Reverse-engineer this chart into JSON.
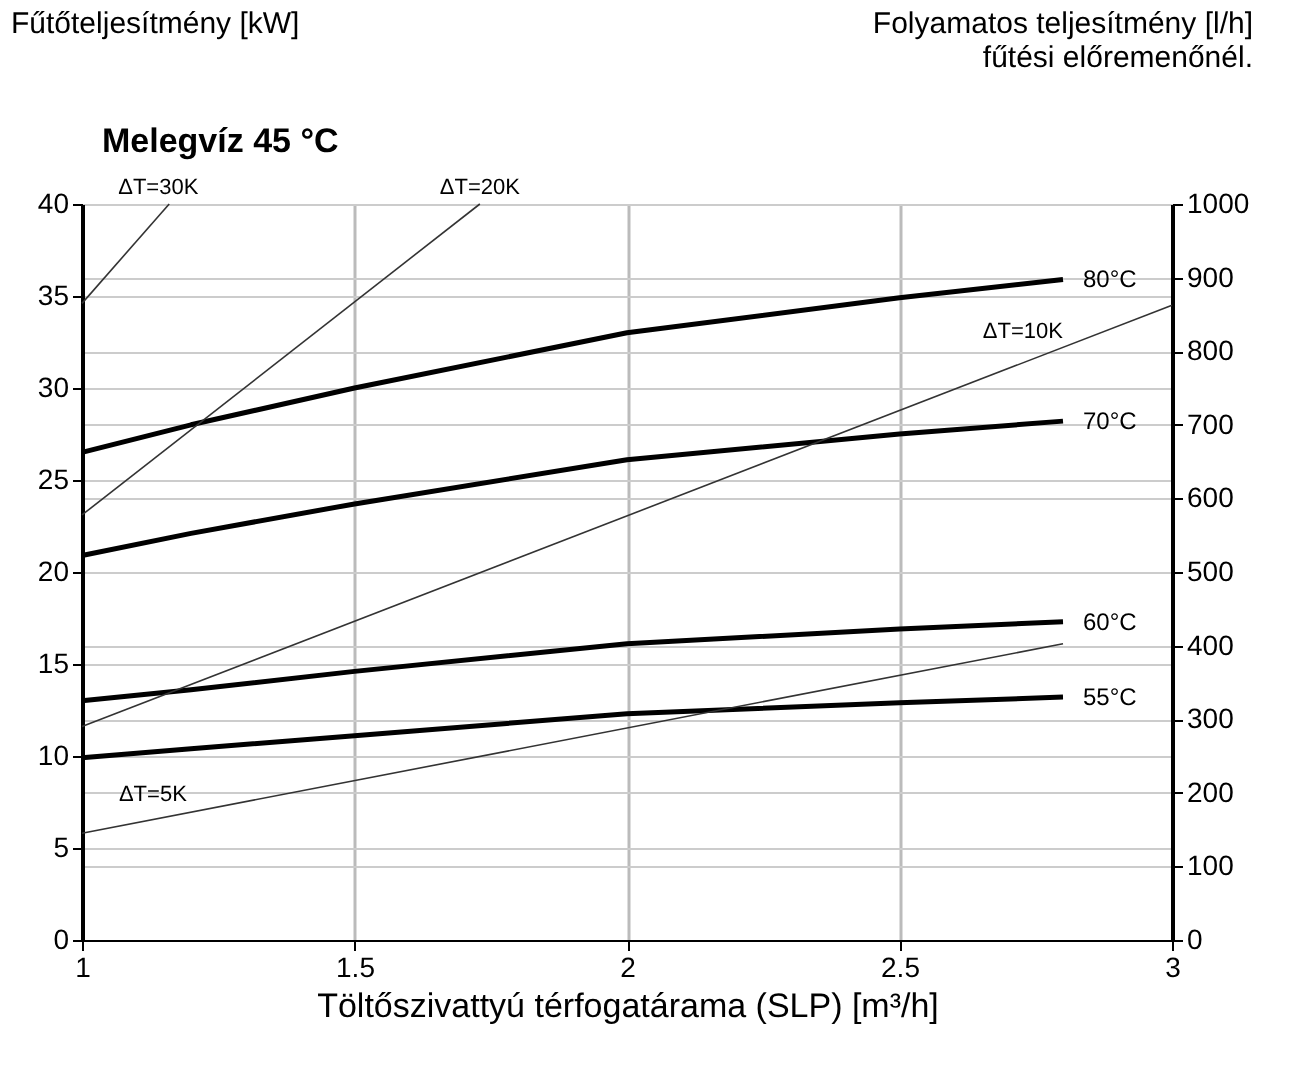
{
  "chart_data": {
    "type": "line",
    "title": "Melegvíz 45 °C",
    "xlabel": "Töltőszivattyú térfogatárama (SLP) [m³/h]",
    "ylabel": "Fűtőteljesítmény [kW]",
    "y2label": "Folyamatos teljesítmény [l/h]\nfűtési előremenőnél.",
    "x": [
      1,
      1.2,
      1.5,
      2,
      2.5,
      2.8
    ],
    "series": [
      {
        "name": "80°C",
        "color": "#000000",
        "values": [
          26.5,
          28.0,
          30.0,
          33.0,
          34.9,
          35.9
        ]
      },
      {
        "name": "70°C",
        "color": "#000000",
        "values": [
          20.9,
          22.1,
          23.7,
          26.1,
          27.5,
          28.2
        ]
      },
      {
        "name": "60°C",
        "color": "#000000",
        "values": [
          13.0,
          13.6,
          14.6,
          16.1,
          16.9,
          17.3
        ]
      },
      {
        "name": "55°C",
        "color": "#000000",
        "values": [
          9.9,
          10.4,
          11.1,
          12.3,
          12.9,
          13.2
        ]
      },
      {
        "color": "#333333",
        "x": [
          1,
          2.8
        ],
        "values": [
          5.8,
          16.1
        ]
      },
      {
        "color": "#333333",
        "x": [
          1,
          3
        ],
        "values": [
          11.6,
          34.5
        ]
      },
      {
        "color": "#333333",
        "x": [
          1,
          1.73
        ],
        "values": [
          23.1,
          40
        ]
      },
      {
        "color": "#333333",
        "x": [
          1,
          1.16
        ],
        "values": [
          34.6,
          40
        ]
      }
    ],
    "annotations": [
      {
        "text": "ΔT=5K",
        "x": 1.13,
        "y": 7.0
      },
      {
        "text": "ΔT=10K",
        "x": 2.8,
        "y": 32.2
      },
      {
        "text": "ΔT=20K",
        "x": 1.73,
        "y": 40
      },
      {
        "text": "ΔT=30K",
        "x": 1.14,
        "y": 40
      }
    ],
    "xlim": [
      1,
      3
    ],
    "xticks": [
      1,
      1.5,
      2,
      2.5,
      3
    ],
    "ylim": [
      0,
      40
    ],
    "yticks": [
      0,
      5,
      10,
      15,
      20,
      25,
      30,
      35,
      40
    ],
    "y2lim": [
      0,
      1000
    ],
    "y2ticks": [
      0,
      100,
      200,
      300,
      400,
      500,
      600,
      700,
      800,
      900,
      1000
    ],
    "grid": true,
    "marker": "none",
    "line_style": "solid"
  }
}
